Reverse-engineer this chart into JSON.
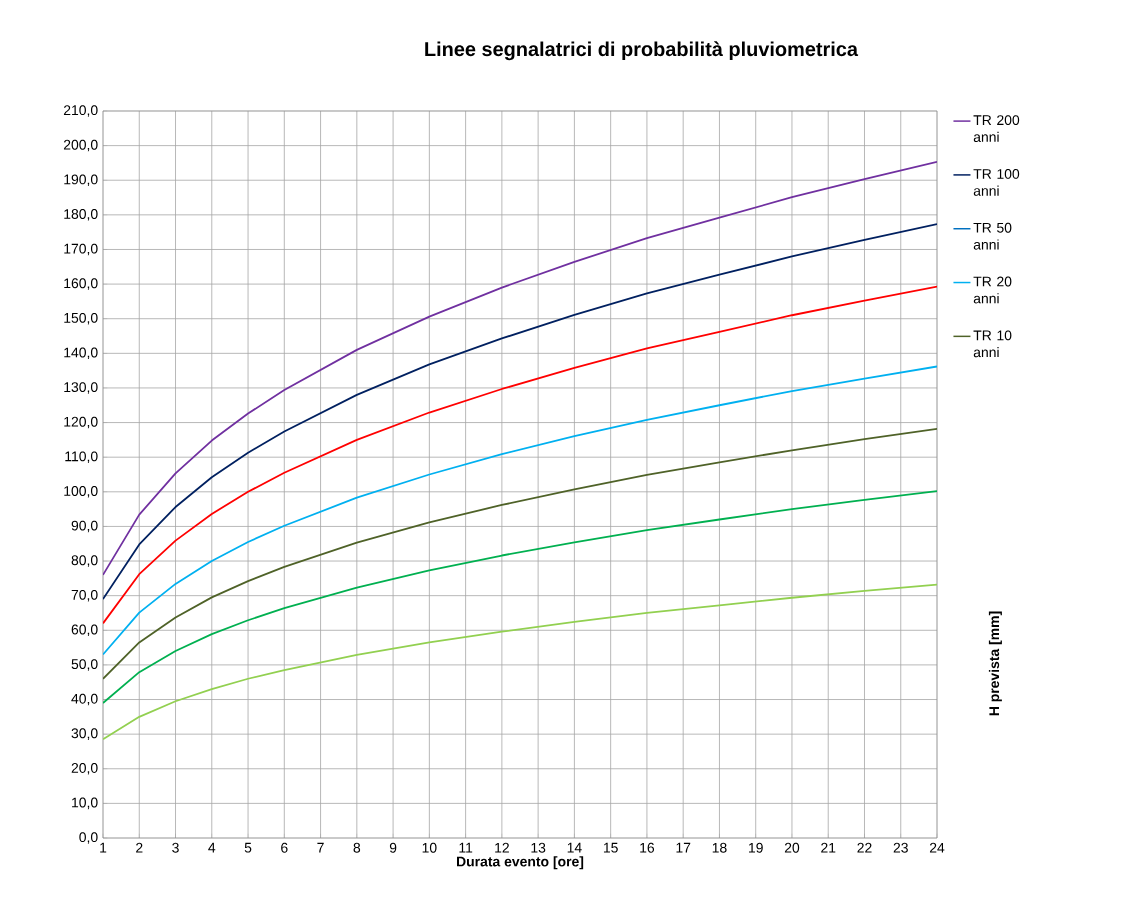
{
  "chart_data": {
    "type": "line",
    "title": "Linee segnalatrici di probabilità pluviometrica",
    "xlabel": "Durata evento [ore]",
    "ylabel": "H prevista [mm]",
    "x": [
      1,
      2,
      3,
      4,
      5,
      6,
      8,
      10,
      12,
      14,
      16,
      18,
      20,
      22,
      24
    ],
    "series": [
      {
        "name": "TR 200 anni",
        "color": "#7030a0",
        "values": [
          76,
          93.4,
          105.3,
          114.8,
          122.6,
          129.4,
          141,
          150.6,
          159,
          166.4,
          173.3,
          179.2,
          185.1,
          190.3,
          195.3
        ]
      },
      {
        "name": "TR 100 anni",
        "color": "#002060",
        "values": [
          69,
          84.8,
          95.6,
          104.2,
          111.3,
          117.4,
          128,
          136.8,
          144.3,
          151.1,
          157.3,
          162.7,
          168,
          172.8,
          177.3
        ]
      },
      {
        "color": "#ff0000",
        "values": [
          62,
          76.2,
          85.9,
          93.6,
          100,
          105.5,
          115,
          122.9,
          129.7,
          135.8,
          141.4,
          146.2,
          151,
          155.2,
          159.3
        ]
      },
      {
        "name": "TR 50 anni",
        "color": "#0070c0",
        "values": [
          null,
          null,
          null,
          null,
          null,
          null,
          null,
          null,
          null,
          null,
          null,
          null,
          null,
          null,
          null
        ]
      },
      {
        "name": "TR 20 anni",
        "color": "#00b0f0",
        "values": [
          53,
          65.1,
          73.4,
          80,
          85.5,
          90.2,
          98.3,
          105,
          110.9,
          116.1,
          120.8,
          125,
          129.1,
          132.7,
          136.2
        ]
      },
      {
        "name": "TR 10 anni",
        "color": "#4f6228",
        "values": [
          46,
          56.5,
          63.7,
          69.5,
          74.2,
          78.3,
          85.3,
          91.2,
          96.2,
          100.7,
          104.9,
          108.5,
          112,
          115.2,
          118.2
        ]
      },
      {
        "color": "#00b050",
        "values": [
          39,
          47.9,
          54,
          58.9,
          62.9,
          66.4,
          72.3,
          77.3,
          81.6,
          85.4,
          88.9,
          92,
          95,
          97.7,
          100.2
        ]
      },
      {
        "color": "#92d050",
        "values": [
          28.5,
          35,
          39.5,
          43,
          46,
          48.5,
          52.9,
          56.5,
          59.6,
          62.4,
          65,
          67.2,
          69.4,
          71.4,
          73.2
        ]
      }
    ],
    "xlim": [
      1,
      24
    ],
    "xticks": [
      1,
      2,
      3,
      4,
      5,
      6,
      7,
      8,
      9,
      10,
      11,
      12,
      13,
      14,
      15,
      16,
      17,
      18,
      19,
      20,
      21,
      22,
      23,
      24
    ],
    "ylim": [
      0,
      210
    ],
    "yticks": [
      {
        "value": 0,
        "label": "0,0"
      },
      {
        "value": 10,
        "label": "10,0"
      },
      {
        "value": 20,
        "label": "20,0"
      },
      {
        "value": 30,
        "label": "30,0"
      },
      {
        "value": 40,
        "label": "40,0"
      },
      {
        "value": 50,
        "label": "50,0"
      },
      {
        "value": 60,
        "label": "60,0"
      },
      {
        "value": 70,
        "label": "70,0"
      },
      {
        "value": 80,
        "label": "80,0"
      },
      {
        "value": 90,
        "label": "90,0"
      },
      {
        "value": 100,
        "label": "100,0"
      },
      {
        "value": 110,
        "label": "110,0"
      },
      {
        "value": 120,
        "label": "120,0"
      },
      {
        "value": 130,
        "label": "130,0"
      },
      {
        "value": 140,
        "label": "140,0"
      },
      {
        "value": 150,
        "label": "150,0"
      },
      {
        "value": 160,
        "label": "160,0"
      },
      {
        "value": 170,
        "label": "170,0"
      },
      {
        "value": 180,
        "label": "180,0"
      },
      {
        "value": 190,
        "label": "190,0"
      },
      {
        "value": 200,
        "label": "200,0"
      },
      {
        "value": 210,
        "label": "210,0"
      }
    ],
    "grid": true,
    "legend": "right",
    "marker": "none",
    "line_style": "solid"
  }
}
